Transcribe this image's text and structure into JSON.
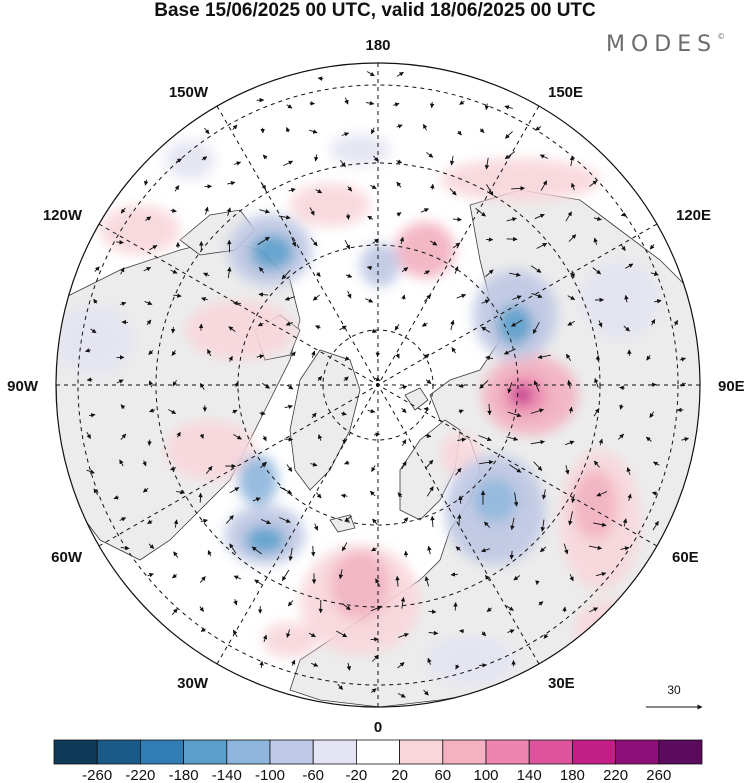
{
  "title": "Base 15/06/2025 00 UTC, valid 18/06/2025 00 UTC",
  "brand": {
    "name": "MODES",
    "mark": "©"
  },
  "map": {
    "projection": "north polar stereographic",
    "longitude_labels": [
      "180",
      "150E",
      "120E",
      "90E",
      "60E",
      "30E",
      "0",
      "30W",
      "60W",
      "90W",
      "120W",
      "150W"
    ],
    "graticule": "dashed",
    "anomaly_centers": [
      {
        "sign": "positive",
        "value": 200,
        "lat": 70,
        "lon": 90
      },
      {
        "sign": "negative",
        "value": -140,
        "lat": 62,
        "lon": -140
      },
      {
        "sign": "negative",
        "value": -140,
        "lat": 66,
        "lon": 100
      },
      {
        "sign": "negative",
        "value": -140,
        "lat": 55,
        "lon": -45
      },
      {
        "sign": "negative",
        "value": -120,
        "lat": 62,
        "lon": 45
      },
      {
        "sign": "positive",
        "value": 100,
        "lat": 50,
        "lon": -5
      },
      {
        "sign": "positive",
        "value": 100,
        "lat": 55,
        "lon": 130
      },
      {
        "sign": "positive",
        "value": 60,
        "lat": 62,
        "lon": -90
      }
    ]
  },
  "vector_scale": {
    "label": "30",
    "speed": 30
  },
  "colorbar": {
    "ticks": [
      "-260",
      "-220",
      "-180",
      "-140",
      "-100",
      "-60",
      "-20",
      "20",
      "60",
      "100",
      "140",
      "180",
      "220",
      "260"
    ],
    "colors": [
      "#0e3a58",
      "#1b5a88",
      "#2f7db4",
      "#5a9fcb",
      "#8fb6dc",
      "#bfc8e4",
      "#e4e4f2",
      "#ffffff",
      "#f8d7dc",
      "#f3b1c1",
      "#ec86ae",
      "#df529d",
      "#c21f86",
      "#8e0f78",
      "#5b0a5e"
    ]
  }
}
